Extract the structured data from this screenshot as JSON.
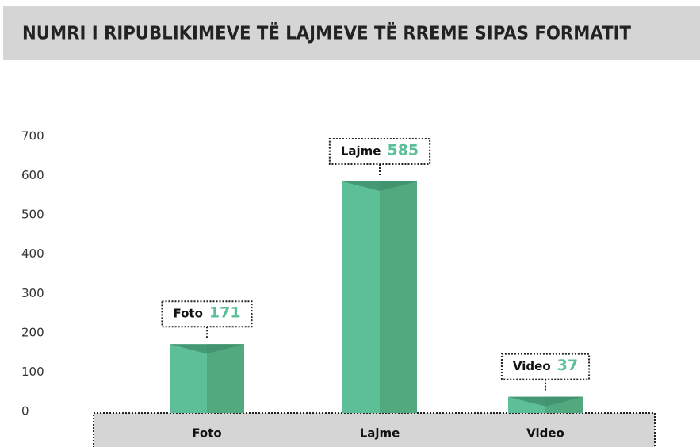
{
  "chart_data": {
    "type": "bar",
    "title": "NUMRI I RIPUBLIKIMEVE TË LAJMEVE TË RREME SIPAS FORMATIT",
    "categories": [
      "Foto",
      "Lajme",
      "Video"
    ],
    "values": [
      171,
      585,
      37
    ],
    "color": "#5cbf97",
    "shade_color": "#52a87f",
    "ylim": [
      0,
      700
    ],
    "yticks": [
      0,
      100,
      200,
      300,
      400,
      500,
      600,
      700
    ],
    "grid": false
  }
}
